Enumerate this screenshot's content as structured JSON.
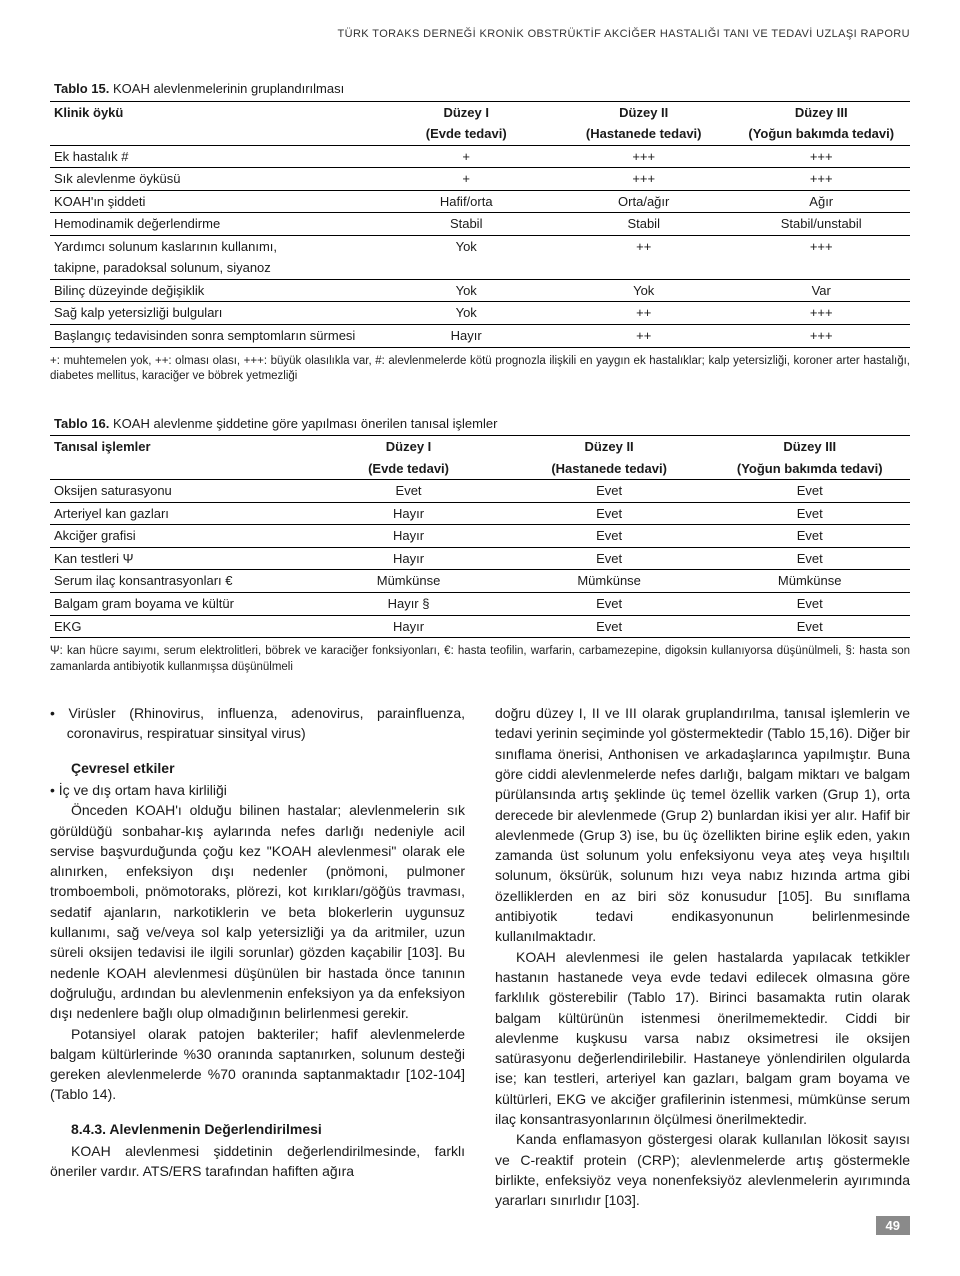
{
  "page_header": "TÜRK TORAKS DERNEĞİ KRONİK OBSTRÜKTİF AKCİĞER HASTALIĞI TANI VE TEDAVİ UZLAŞI RAPORU",
  "page_number": "49",
  "table15": {
    "caption_num": "Tablo 15.",
    "caption_text": "KOAH alevlenmelerinin gruplandırılması",
    "col_head": "Klinik öykü",
    "cols": [
      "Düzey I",
      "Düzey II",
      "Düzey III"
    ],
    "subcols": [
      "(Evde tedavi)",
      "(Hastanede tedavi)",
      "(Yoğun bakımda tedavi)"
    ],
    "rows": [
      {
        "label": "Ek hastalık #",
        "v": [
          "+",
          "+++",
          "+++"
        ]
      },
      {
        "label": "Sık alevlenme öyküsü",
        "v": [
          "+",
          "+++",
          "+++"
        ]
      },
      {
        "label": "KOAH'ın şiddeti",
        "v": [
          "Hafif/orta",
          "Orta/ağır",
          "Ağır"
        ]
      },
      {
        "label": "Hemodinamik değerlendirme",
        "v": [
          "Stabil",
          "Stabil",
          "Stabil/unstabil"
        ]
      },
      {
        "label": "Yardımcı solunum kaslarının kullanımı,",
        "v": [
          "Yok",
          "++",
          "+++"
        ]
      },
      {
        "label": "takipne, paradoksal solunum, siyanoz",
        "v": [
          "",
          "",
          ""
        ]
      },
      {
        "label": "Bilinç düzeyinde değişiklik",
        "v": [
          "Yok",
          "Yok",
          "Var"
        ]
      },
      {
        "label": "Sağ kalp yetersizliği bulguları",
        "v": [
          "Yok",
          "++",
          "+++"
        ]
      },
      {
        "label": "Başlangıç tedavisinden sonra semptomların sürmesi",
        "v": [
          "Hayır",
          "++",
          "+++"
        ]
      }
    ],
    "footnote": "+: muhtemelen yok, ++: olması olası, +++: büyük olasılıkla var, #: alevlenmelerde kötü prognozla ilişkili en yaygın ek hastalıklar; kalp yetersizliği, koroner arter hastalığı, diabetes mellitus, karaciğer ve böbrek yetmezliği"
  },
  "table16": {
    "caption_num": "Tablo 16.",
    "caption_text": "KOAH alevlenme şiddetine göre yapılması önerilen tanısal işlemler",
    "col_head": "Tanısal işlemler",
    "cols": [
      "Düzey I",
      "Düzey II",
      "Düzey III"
    ],
    "subcols": [
      "(Evde tedavi)",
      "(Hastanede tedavi)",
      "(Yoğun bakımda tedavi)"
    ],
    "rows": [
      {
        "label": "Oksijen saturasyonu",
        "v": [
          "Evet",
          "Evet",
          "Evet"
        ]
      },
      {
        "label": "Arteriyel kan gazları",
        "v": [
          "Hayır",
          "Evet",
          "Evet"
        ]
      },
      {
        "label": "Akciğer grafisi",
        "v": [
          "Hayır",
          "Evet",
          "Evet"
        ]
      },
      {
        "label": "Kan testleri Ψ",
        "v": [
          "Hayır",
          "Evet",
          "Evet"
        ]
      },
      {
        "label": "Serum ilaç konsantrasyonları €",
        "v": [
          "Mümkünse",
          "Mümkünse",
          "Mümkünse"
        ]
      },
      {
        "label": "Balgam gram boyama ve kültür",
        "v": [
          "Hayır §",
          "Evet",
          "Evet"
        ]
      },
      {
        "label": "EKG",
        "v": [
          "Hayır",
          "Evet",
          "Evet"
        ]
      }
    ],
    "footnote": "Ψ: kan hücre sayımı, serum elektrolitleri, böbrek ve karaciğer fonksiyonları, €: hasta teofilin, warfarin, carbamezepine, digoksin kullanıyorsa düşünülmeli, §: hasta son zamanlarda antibiyotik kullanmışsa düşünülmeli"
  },
  "left_col": {
    "bullet1": "Virüsler (Rhinovirus, influenza, adenovirus, parainflu­enza, coronavirus, respiratuar sinsityal virus)",
    "head1": "Çevresel etkiler",
    "bullet2": "İç ve dış ortam hava kirliliği",
    "p1": "Önceden KOAH'ı olduğu bilinen hastalar; alevlenme­lerin sık görüldüğü sonbahar-kış aylarında nefes darlığı nedeniyle acil servise başvurduğunda çoğu kez \"KOAH alevlenmesi\" olarak ele alınırken, enfeksiyon dışı nedenler (pnömoni, pulmoner tromboemboli, pnömotoraks, plöre­zi, kot kırıkları/göğüs travması, sedatif ajanların, narkotik­lerin ve beta blokerlerin uygunsuz kullanımı, sağ ve/veya sol kalp yetersizliği ya da aritmiler, uzun süreli oksijen tedavisi ile ilgili sorunlar) gözden kaçabilir [103]. Bu nedenle KOAH alevlenmesi düşünülen bir hastada önce tanının doğruluğu, ardından bu alevlenmenin enfeksiyon ya da enfeksiyon dışı nedenlere bağlı olup olmadığının belirlenmesi gerekir.",
    "p2": "Potansiyel olarak patojen bakteriler; hafif alevlenme­lerde balgam kültürlerinde %30 oranında saptanırken, solunum desteği gereken alevlenmelerde %70 oranında saptanmaktadır [102-104] (Tablo 14).",
    "head2": "8.4.3. Alevlenmenin Değerlendirilmesi",
    "p3": "KOAH alevlenmesi şiddetinin değerlendirilmesinde, farklı öneriler vardır. ATS/ERS tarafından hafiften ağıra"
  },
  "right_col": {
    "p1": "doğru düzey I, II ve III olarak gruplandırılma, tanısal işlemlerin ve tedavi yerinin seçiminde yol göstermektedir (Tablo 15,16). Diğer bir sınıflama önerisi, Anthonisen ve arkadaşlarınca yapılmıştır. Buna göre ciddi alevlenmeler­de nefes darlığı, balgam miktarı ve balgam pürülansında artış şeklinde üç temel özellik varken (Grup 1), orta dere­cede bir alevlenmede (Grup 2) bunlardan ikisi yer alır. Hafif bir alevlenmede (Grup 3) ise, bu üç özellikten birine eşlik eden, yakın zamanda üst solunum yolu enfeksiyonu veya ateş veya hışıltılı solunum, öksürük, solunum hızı veya nabız hızında artma gibi özelliklerden en az biri söz konusudur [105]. Bu sınıflama antibiyotik tedavi endikas­yonunun belirlenmesinde kullanılmaktadır.",
    "p2": "KOAH alevlenmesi ile gelen hastalarda yapılacak tet­kikler hastanın hastanede veya evde tedavi edilecek olmasına göre farklılık gösterebilir (Tablo 17). Birinci basamakta rutin olarak balgam kültürünün istenmesi önerilmemektedir. Ciddi bir alevlenme kuşkusu varsa nabız oksimetresi ile oksijen satürasyonu değerlendirilebi­lir. Hastaneye yönlendirilen olgularda ise; kan testleri, arteriyel kan gazları, balgam gram boyama ve kültürleri, EKG ve akciğer grafilerinin istenmesi, mümkünse serum ilaç konsantrasyonlarının ölçülmesi önerilmektedir.",
    "p3": "Kanda enflamasyon göstergesi olarak kullanılan lökosit sayısı ve C-reaktif protein (CRP); alevlenmelerde artış göstermekle birlikte, enfeksiyöz veya nonenfeksi­yöz alevlenmelerin ayırımında yararları sınırlıdır [103]."
  }
}
